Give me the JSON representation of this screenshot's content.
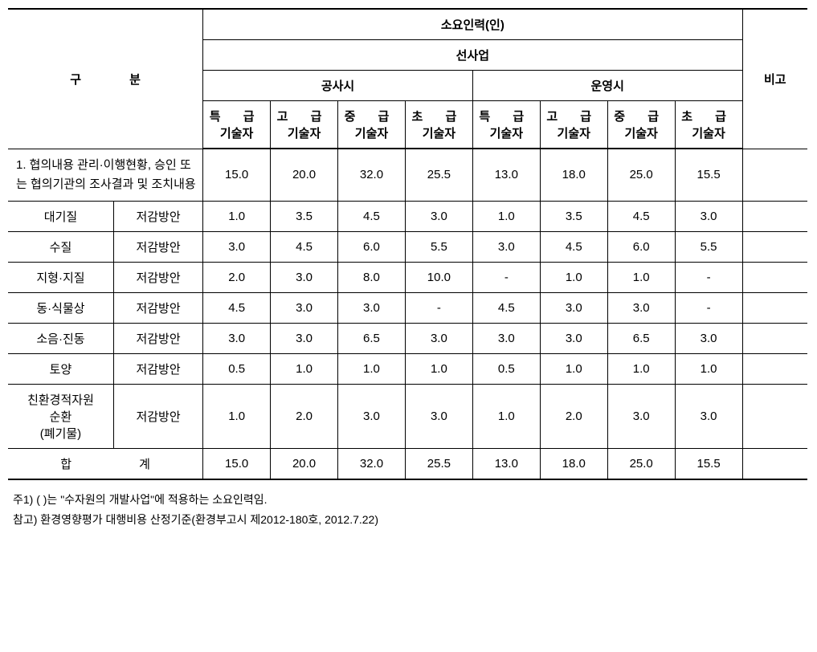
{
  "header": {
    "division": "구 분",
    "required_personnel": "소요인력(인)",
    "project": "선사업",
    "construction": "공사시",
    "operation": "운영시",
    "remarks": "비고",
    "skill_special": "특 급",
    "skill_high": "고 급",
    "skill_mid": "중 급",
    "skill_low": "초 급",
    "engineer": "기술자"
  },
  "rows": [
    {
      "desc": "1. 협의내용 관리·이행현황, 승인 또는 협의기관의 조사결과 및 조치내용",
      "c_sp": "15.0",
      "c_hi": "20.0",
      "c_mi": "32.0",
      "c_lo": "25.5",
      "o_sp": "13.0",
      "o_hi": "18.0",
      "o_mi": "25.0",
      "o_lo": "15.5"
    },
    {
      "cat": "대기질",
      "sub": "저감방안",
      "c_sp": "1.0",
      "c_hi": "3.5",
      "c_mi": "4.5",
      "c_lo": "3.0",
      "o_sp": "1.0",
      "o_hi": "3.5",
      "o_mi": "4.5",
      "o_lo": "3.0"
    },
    {
      "cat": "수질",
      "sub": "저감방안",
      "c_sp": "3.0",
      "c_hi": "4.5",
      "c_mi": "6.0",
      "c_lo": "5.5",
      "o_sp": "3.0",
      "o_hi": "4.5",
      "o_mi": "6.0",
      "o_lo": "5.5"
    },
    {
      "cat": "지형·지질",
      "sub": "저감방안",
      "c_sp": "2.0",
      "c_hi": "3.0",
      "c_mi": "8.0",
      "c_lo": "10.0",
      "o_sp": "-",
      "o_hi": "1.0",
      "o_mi": "1.0",
      "o_lo": "-"
    },
    {
      "cat": "동·식물상",
      "sub": "저감방안",
      "c_sp": "4.5",
      "c_hi": "3.0",
      "c_mi": "3.0",
      "c_lo": "-",
      "o_sp": "4.5",
      "o_hi": "3.0",
      "o_mi": "3.0",
      "o_lo": "-"
    },
    {
      "cat": "소음·진동",
      "sub": "저감방안",
      "c_sp": "3.0",
      "c_hi": "3.0",
      "c_mi": "6.5",
      "c_lo": "3.0",
      "o_sp": "3.0",
      "o_hi": "3.0",
      "o_mi": "6.5",
      "o_lo": "3.0"
    },
    {
      "cat": "토양",
      "sub": "저감방안",
      "c_sp": "0.5",
      "c_hi": "1.0",
      "c_mi": "1.0",
      "c_lo": "1.0",
      "o_sp": "0.5",
      "o_hi": "1.0",
      "o_mi": "1.0",
      "o_lo": "1.0"
    },
    {
      "cat": "친환경적자원\n순환\n(폐기물)",
      "sub": "저감방안",
      "c_sp": "1.0",
      "c_hi": "2.0",
      "c_mi": "3.0",
      "c_lo": "3.0",
      "o_sp": "1.0",
      "o_hi": "2.0",
      "o_mi": "3.0",
      "o_lo": "3.0"
    }
  ],
  "total": {
    "label": "합 계",
    "c_sp": "15.0",
    "c_hi": "20.0",
    "c_mi": "32.0",
    "c_lo": "25.5",
    "o_sp": "13.0",
    "o_hi": "18.0",
    "o_mi": "25.0",
    "o_lo": "15.5"
  },
  "notes": {
    "n1": "주1) (  )는 \"수자원의 개발사업\"에 적용하는 소요인력임.",
    "n2": "참고) 환경영향평가 대행비용 산정기준(환경부고시 제2012-180호, 2012.7.22)"
  },
  "col_widths": {
    "cat": 130,
    "sub": 110,
    "val": 83,
    "remarks": 80
  }
}
